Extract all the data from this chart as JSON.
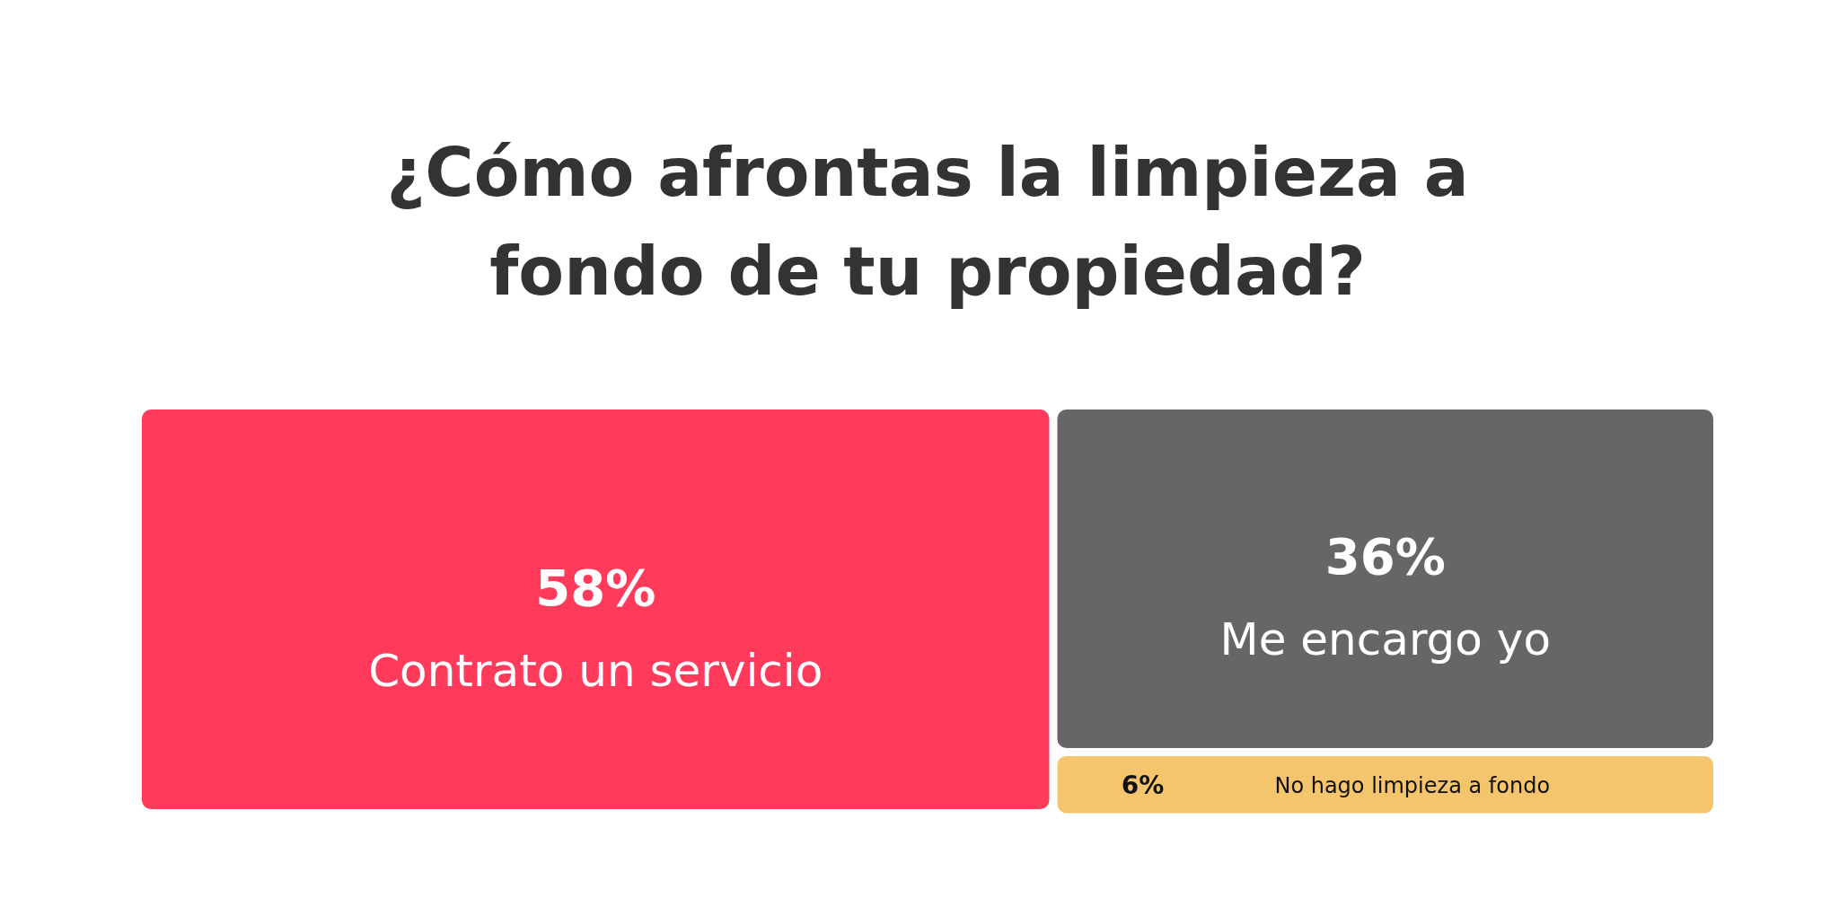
{
  "chart_data": {
    "type": "other",
    "title": "¿Cómo afrontas la limpieza a fondo de tu propiedad?",
    "categories": [
      "Contrato un servicio",
      "Me encargo yo",
      "No hago limpieza a fondo"
    ],
    "values": [
      58,
      36,
      6
    ],
    "value_labels": [
      "58%",
      "36%",
      "6%"
    ],
    "colors": [
      "#ff3a5a",
      "#666666",
      "#f4c56c"
    ]
  }
}
